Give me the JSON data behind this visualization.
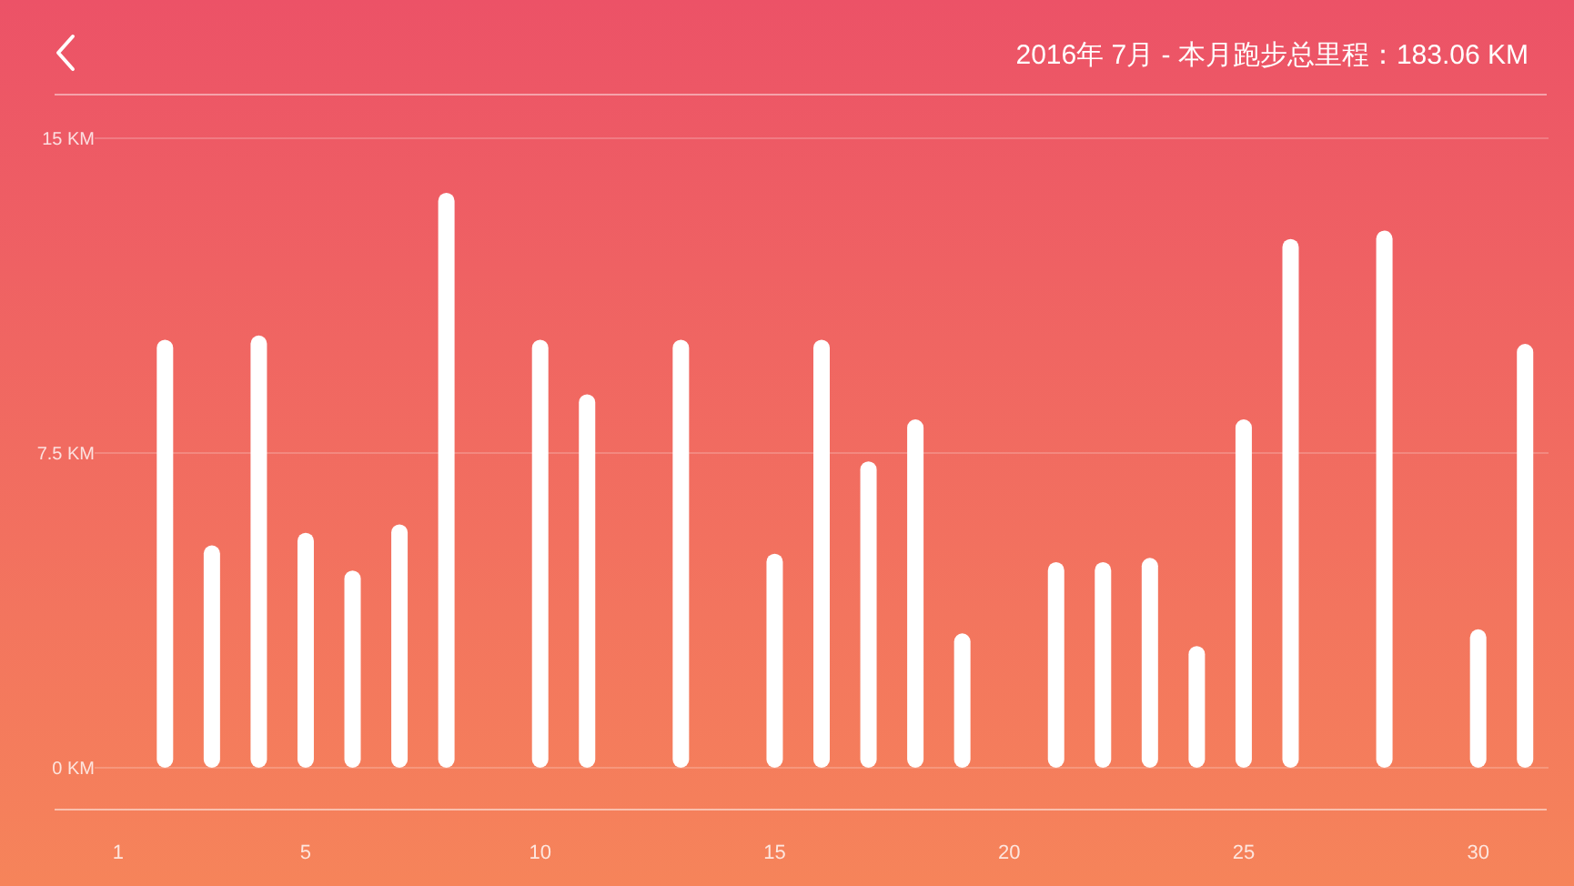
{
  "chart_data": {
    "type": "bar",
    "title": "2016年 7月 - 本月跑步总里程：183.06 KM",
    "categories": [
      "1",
      null,
      null,
      null,
      "5",
      null,
      null,
      null,
      null,
      "10",
      null,
      null,
      null,
      null,
      "15",
      null,
      null,
      null,
      null,
      "20",
      null,
      null,
      null,
      null,
      "25",
      null,
      null,
      null,
      null,
      "30",
      null
    ],
    "values": [
      0,
      10.2,
      5.3,
      10.3,
      5.6,
      4.7,
      5.8,
      13.7,
      0,
      10.2,
      8.9,
      0,
      10.2,
      0,
      5.1,
      10.2,
      7.3,
      8.3,
      3.2,
      0,
      4.9,
      4.9,
      5.0,
      2.9,
      8.3,
      12.6,
      0,
      12.8,
      0,
      3.3,
      10.1
    ],
    "color": "#ffffff",
    "ylim": [
      0,
      15
    ],
    "yticks": [
      {
        "value": 0,
        "label": "0 KM"
      },
      {
        "value": 7.5,
        "label": "7.5 KM"
      },
      {
        "value": 15,
        "label": "15 KM"
      }
    ],
    "grid": "y"
  }
}
